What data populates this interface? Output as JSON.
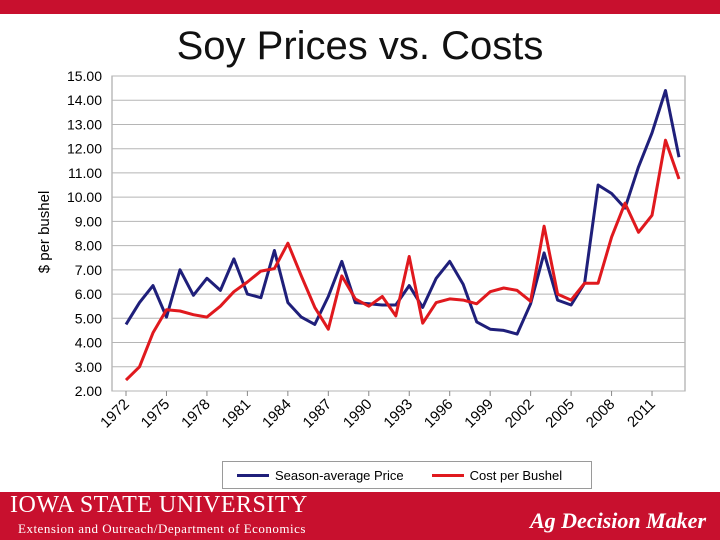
{
  "chart_data": {
    "type": "line",
    "title": "Soy Prices vs. Costs",
    "ylabel": "$ per bushel",
    "xlabel": "",
    "ylim": [
      2.0,
      15.0
    ],
    "y_ticks": [
      "2.00",
      "3.00",
      "4.00",
      "5.00",
      "6.00",
      "7.00",
      "8.00",
      "9.00",
      "10.00",
      "11.00",
      "12.00",
      "13.00",
      "14.00",
      "15.00"
    ],
    "x_tick_labels": [
      "1972",
      "1975",
      "1978",
      "1981",
      "1984",
      "1987",
      "1990",
      "1993",
      "1996",
      "1999",
      "2002",
      "2005",
      "2008",
      "2011"
    ],
    "x": [
      1972,
      1973,
      1974,
      1975,
      1976,
      1977,
      1978,
      1979,
      1980,
      1981,
      1982,
      1983,
      1984,
      1985,
      1986,
      1987,
      1988,
      1989,
      1990,
      1991,
      1992,
      1993,
      1994,
      1995,
      1996,
      1997,
      1998,
      1999,
      2000,
      2001,
      2002,
      2003,
      2004,
      2005,
      2006,
      2007,
      2008,
      2009,
      2010,
      2011,
      2012,
      2013
    ],
    "grid": true,
    "legend_position": "bottom",
    "series": [
      {
        "name": "Season-average Price",
        "color": "#1f1f7a",
        "values": [
          4.75,
          5.65,
          6.35,
          5.05,
          7.0,
          5.95,
          6.65,
          6.15,
          7.45,
          6.0,
          5.85,
          7.8,
          5.65,
          5.05,
          4.75,
          5.9,
          7.35,
          5.65,
          5.6,
          5.55,
          5.55,
          6.35,
          5.45,
          6.65,
          7.35,
          6.4,
          4.85,
          4.55,
          4.5,
          4.35,
          5.6,
          7.7,
          5.75,
          5.55,
          6.45,
          10.5,
          10.15,
          9.55,
          11.25,
          12.65,
          14.4,
          11.65
        ]
      },
      {
        "name": "Cost per Bushel",
        "color": "#e0191e",
        "values": [
          2.45,
          3.0,
          4.4,
          5.35,
          5.3,
          5.15,
          5.05,
          5.5,
          6.1,
          6.5,
          6.95,
          7.05,
          8.1,
          6.75,
          5.45,
          4.55,
          6.75,
          5.8,
          5.5,
          5.9,
          5.1,
          7.55,
          4.8,
          5.65,
          5.8,
          5.75,
          5.6,
          6.1,
          6.25,
          6.15,
          5.7,
          8.8,
          6.0,
          5.75,
          6.45,
          6.45,
          8.35,
          9.75,
          8.55,
          9.25,
          12.35,
          10.75
        ]
      }
    ]
  },
  "footer": {
    "university": "IOWA STATE UNIVERSITY",
    "department": "Extension and Outreach/Department of Economics",
    "brand": "Ag Decision Maker"
  }
}
